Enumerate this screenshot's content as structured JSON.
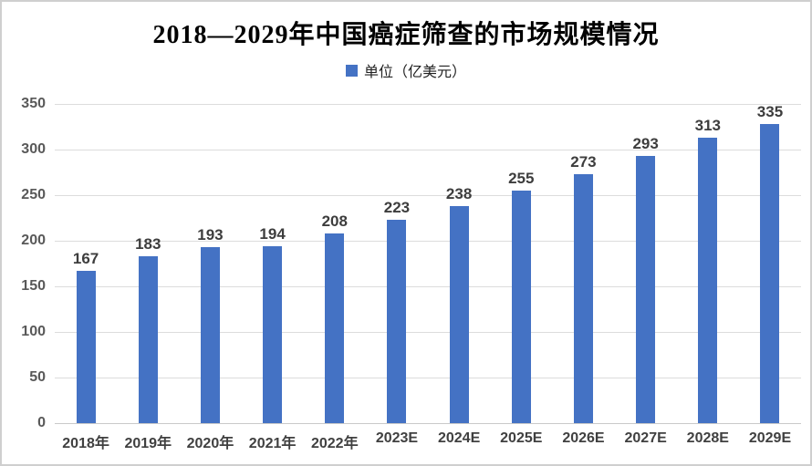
{
  "title": "2018—2029年中国癌症筛查的市场规模情况",
  "legend": {
    "label": "单位（亿美元）",
    "swatch_color": "#4472C4"
  },
  "chart_data": {
    "type": "bar",
    "title": "2018—2029年中国癌症筛查的市场规模情况",
    "categories": [
      "2018年",
      "2019年",
      "2020年",
      "2021年",
      "2022年",
      "2023E",
      "2024E",
      "2025E",
      "2026E",
      "2027E",
      "2028E",
      "2029E"
    ],
    "values": [
      167,
      183,
      193,
      194,
      208,
      223,
      238,
      255,
      273,
      293,
      313,
      335
    ],
    "xlabel": "",
    "ylabel": "",
    "ylim": [
      0,
      350
    ],
    "yticks": [
      0,
      50,
      100,
      150,
      200,
      250,
      300,
      350
    ],
    "grid": true,
    "legend_position": "top",
    "legend_entries": [
      "单位（亿美元）"
    ],
    "bar_color": "#4472C4",
    "data_labels": true
  },
  "colors": {
    "bar": "#4472C4",
    "gridline": "#dcdcdc",
    "baseline": "#c9c9c9",
    "axis_label": "#595959",
    "data_label": "#3d3d3d",
    "category_label": "#404040",
    "frame_border": "#cfcfcf",
    "background": "#ffffff"
  }
}
